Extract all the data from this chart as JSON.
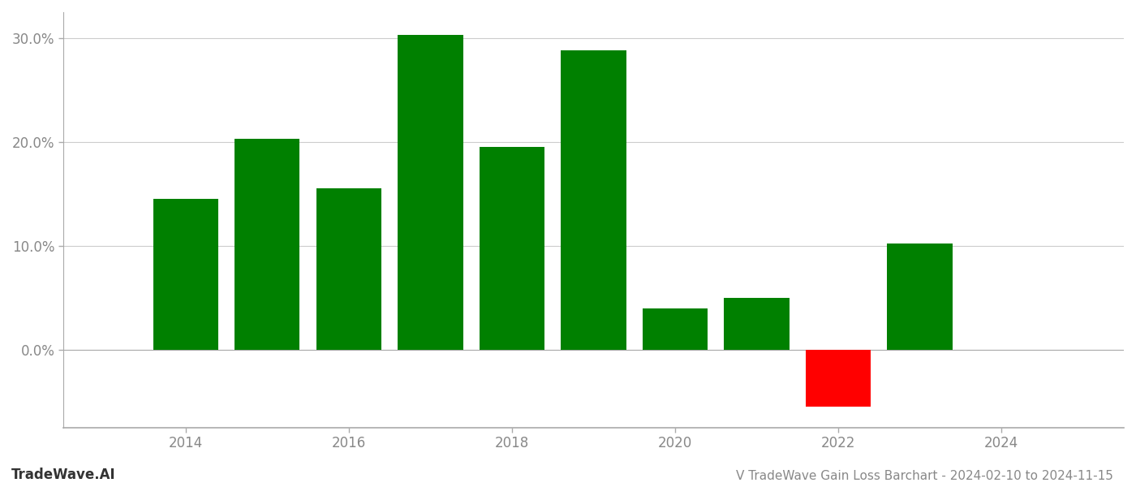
{
  "years": [
    2014,
    2015,
    2016,
    2017,
    2018,
    2019,
    2020,
    2021,
    2022,
    2023
  ],
  "values": [
    0.145,
    0.203,
    0.155,
    0.303,
    0.195,
    0.288,
    0.04,
    0.05,
    -0.055,
    0.102
  ],
  "colors": [
    "#008000",
    "#008000",
    "#008000",
    "#008000",
    "#008000",
    "#008000",
    "#008000",
    "#008000",
    "#ff0000",
    "#008000"
  ],
  "bar_width": 0.8,
  "title": "V TradeWave Gain Loss Barchart - 2024-02-10 to 2024-11-15",
  "watermark": "TradeWave.AI",
  "xlim": [
    2012.5,
    2025.5
  ],
  "ylim": [
    -0.075,
    0.325
  ],
  "yticks": [
    0.0,
    0.1,
    0.2,
    0.3
  ],
  "ytick_labels": [
    "0.0%",
    "10.0%",
    "20.0%",
    "30.0%"
  ],
  "xticks": [
    2014,
    2016,
    2018,
    2020,
    2022,
    2024
  ],
  "background_color": "#ffffff",
  "grid_color": "#cccccc",
  "title_fontsize": 11,
  "tick_fontsize": 12,
  "watermark_fontsize": 12
}
